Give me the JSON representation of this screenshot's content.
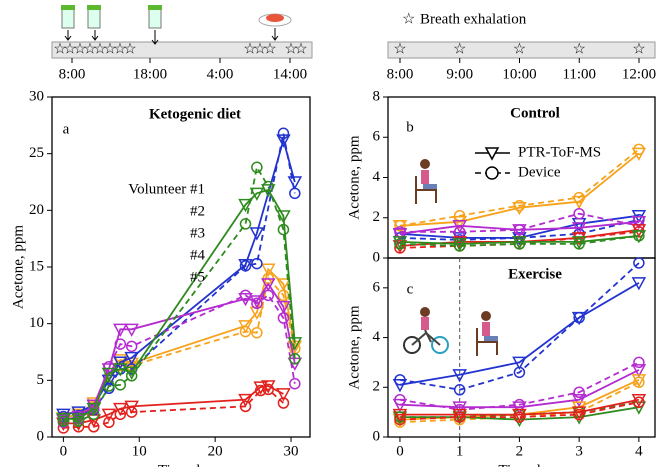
{
  "timelines": {
    "left": {
      "labels": [
        "8:00",
        "18:00",
        "4:00",
        "14:00"
      ]
    },
    "right": {
      "legend": "Breath exhalation",
      "labels": [
        "8:00",
        "9:00",
        "10:00",
        "11:00",
        "12:00"
      ]
    }
  },
  "chart_data": [
    {
      "type": "line",
      "panel_label": "a",
      "title": "Ketogenic diet",
      "x_label": "Time, h",
      "y_label": "Acetone, ppm",
      "xlim": [
        -1.5,
        32.5
      ],
      "xticks": [
        0,
        10,
        20,
        30
      ],
      "ylim": [
        0,
        30
      ],
      "yticks": [
        0,
        5,
        10,
        15,
        20,
        25,
        30
      ],
      "series": [
        {
          "name": "Volunteer #1",
          "color": "#f7a21b",
          "x": [
            0,
            2,
            4,
            6,
            7.5,
            9,
            24,
            25.5,
            27,
            29,
            30.5
          ],
          "ptr": [
            1.7,
            2.0,
            3.0,
            5.0,
            6.8,
            6.5,
            9.8,
            11.0,
            14.8,
            13.5,
            8.0
          ],
          "device": [
            1.6,
            1.8,
            2.7,
            5.3,
            6.3,
            6.3,
            9.3,
            9.2,
            14.0,
            12.5,
            7.8
          ]
        },
        {
          "name": "#2",
          "color": "#e3201c",
          "x": [
            0,
            2,
            4,
            6,
            7.5,
            9,
            24,
            26,
            27,
            29
          ],
          "ptr": [
            1.2,
            1.2,
            1.5,
            2.0,
            2.5,
            2.7,
            3.3,
            4.4,
            4.5,
            3.8
          ],
          "device": [
            0.8,
            0.9,
            0.9,
            1.3,
            2.0,
            2.2,
            2.7,
            4.1,
            4.2,
            3.0
          ]
        },
        {
          "name": "#3",
          "color": "#2233d0",
          "x": [
            0,
            2,
            4,
            6,
            7.5,
            9,
            24,
            25.5,
            29,
            30.5
          ],
          "ptr": [
            2.0,
            2.2,
            2.8,
            5.0,
            6.6,
            7.0,
            15.2,
            18.0,
            26.2,
            22.5
          ],
          "device": [
            1.8,
            1.9,
            2.4,
            4.3,
            6.0,
            6.0,
            15.1,
            15.3,
            26.8,
            21.5
          ]
        },
        {
          "name": "#4",
          "color": "#b42bd0",
          "x": [
            0,
            2,
            4,
            6,
            7.5,
            9,
            24,
            25.5,
            27,
            29,
            30.5
          ],
          "ptr": [
            1.5,
            1.8,
            2.8,
            6.0,
            9.5,
            9.5,
            12.2,
            12.0,
            13.5,
            11.5,
            6.5
          ],
          "device": [
            1.3,
            1.6,
            2.5,
            6.2,
            8.2,
            8.0,
            12.5,
            11.8,
            12.5,
            10.5,
            4.7
          ]
        },
        {
          "name": "#5",
          "color": "#2e8b1e",
          "x": [
            0,
            2,
            4,
            6,
            7.5,
            9,
            24,
            25.5,
            27,
            29,
            30.5
          ],
          "ptr": [
            1.6,
            1.6,
            2.5,
            5.6,
            6.0,
            5.7,
            20.5,
            21.5,
            21.8,
            19.5,
            8.3
          ],
          "device": [
            1.4,
            1.4,
            2.0,
            4.5,
            4.6,
            5.4,
            18.8,
            23.8,
            22.1,
            18.3,
            6.9
          ]
        }
      ]
    },
    {
      "type": "line",
      "panel_label": "b",
      "title": "Control",
      "y_label": "Acetone, ppm",
      "methods": [
        "PTR-ToF-MS",
        "Device"
      ],
      "xlim": [
        -0.2,
        4.27
      ],
      "ylim": [
        0,
        8
      ],
      "yticks": [
        0,
        2,
        4,
        6,
        8
      ],
      "series": [
        {
          "color": "#f7a21b",
          "x": [
            0,
            1,
            2,
            3,
            4
          ],
          "ptr": [
            1.6,
            1.8,
            2.5,
            2.8,
            5.2
          ],
          "device": [
            1.6,
            2.1,
            2.6,
            3.0,
            5.4
          ]
        },
        {
          "color": "#2233d0",
          "x": [
            0,
            1,
            2,
            3,
            4
          ],
          "ptr": [
            1.2,
            1.0,
            1.0,
            1.7,
            2.1
          ],
          "device": [
            1.0,
            0.9,
            1.0,
            1.2,
            1.9
          ]
        },
        {
          "color": "#b42bd0",
          "x": [
            0,
            1,
            2,
            3,
            4
          ],
          "ptr": [
            1.2,
            1.6,
            1.4,
            1.5,
            1.8
          ],
          "device": [
            1.3,
            1.3,
            1.4,
            2.2,
            1.6
          ]
        },
        {
          "color": "#e3201c",
          "x": [
            0,
            1,
            2,
            3,
            4
          ],
          "ptr": [
            0.6,
            0.8,
            0.8,
            1.0,
            1.4
          ],
          "device": [
            0.5,
            0.6,
            0.7,
            1.0,
            1.3
          ]
        },
        {
          "color": "#2e8b1e",
          "x": [
            0,
            1,
            2,
            3,
            4
          ],
          "ptr": [
            0.8,
            0.7,
            0.8,
            0.8,
            1.1
          ],
          "device": [
            0.7,
            0.6,
            0.7,
            0.7,
            1.1
          ]
        }
      ]
    },
    {
      "type": "line",
      "panel_label": "c",
      "title": "Exercise",
      "x_label": "Time, h",
      "y_label": "Acetone, ppm",
      "vline_x": 1,
      "xlim": [
        -0.2,
        4.27
      ],
      "xticks": [
        0,
        1,
        2,
        3,
        4
      ],
      "ylim": [
        0,
        7.2
      ],
      "yticks": [
        0,
        2,
        4,
        6
      ],
      "series": [
        {
          "color": "#2233d0",
          "x": [
            0,
            1,
            2,
            3,
            4
          ],
          "ptr": [
            2.1,
            2.5,
            3.0,
            4.8,
            6.2
          ],
          "device": [
            2.3,
            1.9,
            2.6,
            4.8,
            7.0
          ]
        },
        {
          "color": "#b42bd0",
          "x": [
            0,
            1,
            2,
            3,
            4
          ],
          "ptr": [
            1.3,
            1.2,
            1.2,
            1.5,
            2.7
          ],
          "device": [
            1.5,
            1.1,
            1.3,
            1.8,
            3.0
          ]
        },
        {
          "color": "#f7a21b",
          "x": [
            0,
            1,
            2,
            3,
            4
          ],
          "ptr": [
            0.7,
            0.8,
            0.9,
            1.2,
            2.3
          ],
          "device": [
            0.6,
            0.7,
            0.8,
            1.0,
            2.2
          ]
        },
        {
          "color": "#2e8b1e",
          "x": [
            0,
            1,
            2,
            3,
            4
          ],
          "ptr": [
            0.8,
            0.8,
            0.7,
            0.8,
            1.2
          ],
          "device": [
            0.8,
            0.8,
            0.9,
            1.0,
            1.4
          ]
        },
        {
          "color": "#e3201c",
          "x": [
            0,
            1,
            2,
            3,
            4
          ],
          "ptr": [
            0.9,
            0.9,
            0.9,
            1.0,
            1.5
          ],
          "device": [
            0.7,
            0.8,
            0.8,
            0.9,
            1.4
          ]
        }
      ]
    }
  ]
}
